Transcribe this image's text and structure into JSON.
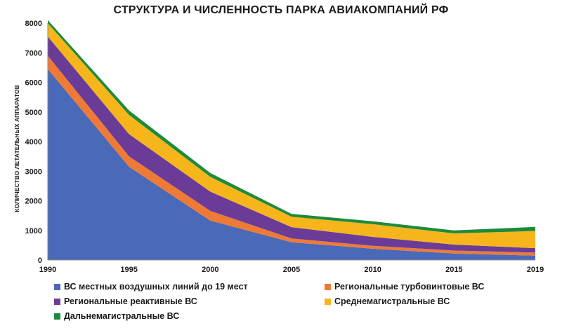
{
  "chart_data": {
    "type": "area",
    "stacked": true,
    "title": "СТРУКТУРА И ЧИСЛЕННОСТЬ ПАРКА АВИАКОМПАНИЙ РФ",
    "xlabel": "",
    "ylabel": "КОЛИЧЕСТВО ЛЕТАТЕЛЬНЫХ АППАРАТОВ",
    "x": [
      "1990",
      "1995",
      "2000",
      "2005",
      "2010",
      "2015",
      "2019"
    ],
    "ylim": [
      0,
      8000
    ],
    "yticks": [
      "0",
      "1000",
      "2000",
      "3000",
      "4000",
      "5000",
      "6000",
      "7000",
      "8000"
    ],
    "grid": false,
    "legend_position": "bottom",
    "series": [
      {
        "name": "ВС местных воздушных линий до 19 мест",
        "color": "#4a69b8",
        "values": [
          6450,
          3150,
          1330,
          600,
          380,
          220,
          150
        ]
      },
      {
        "name": "Региональные турбовинтовые ВС",
        "color": "#ee7a36",
        "values": [
          450,
          350,
          330,
          130,
          100,
          100,
          100
        ]
      },
      {
        "name": "Региональные реактивные ВС",
        "color": "#6a3c98",
        "values": [
          650,
          750,
          650,
          380,
          300,
          200,
          150
        ]
      },
      {
        "name": "Среднемагистральные ВС",
        "color": "#f7b51c",
        "values": [
          450,
          650,
          500,
          350,
          430,
          380,
          580
        ]
      },
      {
        "name": "Дальнемагистральные ВС",
        "color": "#1d8b3c",
        "values": [
          100,
          150,
          130,
          100,
          100,
          100,
          140
        ]
      }
    ]
  }
}
